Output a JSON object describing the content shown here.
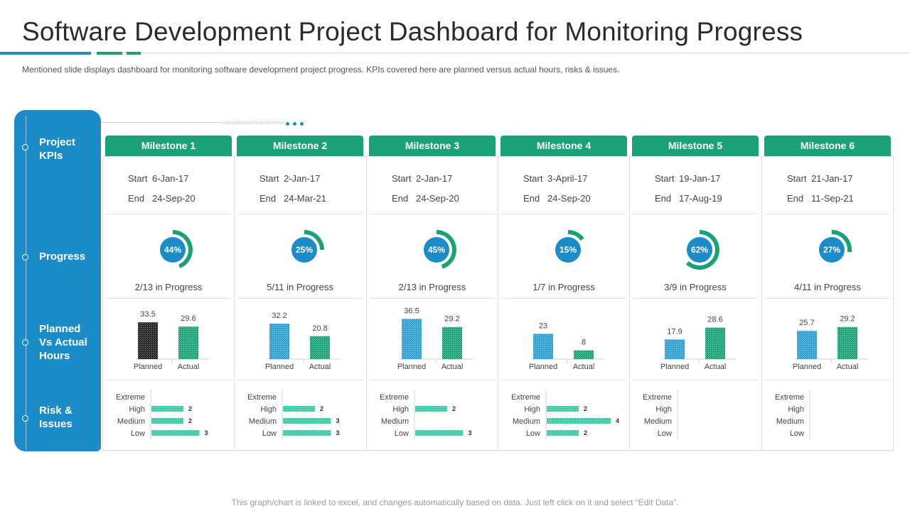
{
  "title": "Software Development Project Dashboard for Monitoring Progress",
  "subtitle": "Mentioned slide displays dashboard for monitoring software development  project progress. KPIs covered here are planned versus actual hours, risks & issues.",
  "footnote": "This graph/chart is linked to excel, and changes automatically based on data. Just left click on it and select “Edit Data”.",
  "colors": {
    "blue": "#1c8cc9",
    "green": "#1aa177",
    "bar_blue": "#2e9fd3",
    "bar_green": "#1aa177",
    "risk_bar": "#3cc8a4",
    "planned_dark": "#222222"
  },
  "sidebar": {
    "rows": [
      {
        "label": "Project KPIs"
      },
      {
        "label": "Progress"
      },
      {
        "label": "Planned Vs Actual Hours"
      },
      {
        "label": "Risk & Issues"
      }
    ]
  },
  "labels": {
    "start": "Start",
    "end": "End",
    "planned": "Planned",
    "actual": "Actual",
    "risk_levels": [
      "Extreme",
      "High",
      "Medium",
      "Low"
    ]
  },
  "milestones": [
    {
      "name": "Milestone  1",
      "start": "6-Jan-17",
      "end": "24-Sep-20",
      "progress_pct": 44,
      "progress_label": "44%",
      "progress_text": "2/13 in Progress",
      "planned": 33.5,
      "actual": 29.6,
      "planned_label": "33.5",
      "actual_label": "29.6",
      "planned_dark": true,
      "risks": [
        null,
        2,
        2,
        3
      ],
      "risk_labels": [
        "",
        "2",
        "2",
        "3"
      ]
    },
    {
      "name": "Milestone 2",
      "start": "2-Jan-17",
      "end": "24-Mar-21",
      "progress_pct": 25,
      "progress_label": "25%",
      "progress_text": "5/11 in Progress",
      "planned": 32.2,
      "actual": 20.8,
      "planned_label": "32.2",
      "actual_label": "20.8",
      "planned_dark": false,
      "risks": [
        null,
        2,
        3,
        3
      ],
      "risk_labels": [
        "",
        "2",
        "3",
        "3"
      ]
    },
    {
      "name": "Milestone 3",
      "start": "2-Jan-17",
      "end": "24-Sep-20",
      "progress_pct": 45,
      "progress_label": "45%",
      "progress_text": "2/13 in Progress",
      "planned": 36.5,
      "actual": 29.2,
      "planned_label": "36.5",
      "actual_label": "29.2",
      "planned_dark": false,
      "risks": [
        null,
        2,
        null,
        3
      ],
      "risk_labels": [
        "",
        "2",
        "",
        "3"
      ]
    },
    {
      "name": "Milestone 4",
      "start": "3-April-17",
      "end": "24-Sep-20",
      "progress_pct": 15,
      "progress_label": "15%",
      "progress_text": "1/7 in Progress",
      "planned": 23,
      "actual": 8,
      "planned_label": "23",
      "actual_label": "8",
      "planned_dark": false,
      "risks": [
        null,
        2,
        4,
        2
      ],
      "risk_labels": [
        "",
        "2",
        "4",
        "2"
      ]
    },
    {
      "name": "Milestone 5",
      "start": "19-Jan-17",
      "end": "17-Aug-19",
      "progress_pct": 62,
      "progress_label": "62%",
      "progress_text": "3/9 in Progress",
      "planned": 17.9,
      "actual": 28.6,
      "planned_label": "17.9",
      "actual_label": "28.6",
      "planned_dark": false,
      "risks": [
        null,
        null,
        null,
        null
      ],
      "risk_labels": [
        "",
        "",
        "",
        ""
      ]
    },
    {
      "name": "Milestone 6",
      "start": "21-Jan-17",
      "end": "11-Sep-21",
      "progress_pct": 27,
      "progress_label": "27%",
      "progress_text": "4/11 in Progress",
      "planned": 25.7,
      "actual": 29.2,
      "planned_label": "25.7",
      "actual_label": "29.2",
      "planned_dark": false,
      "risks": [
        null,
        null,
        null,
        null
      ],
      "risk_labels": [
        "",
        "",
        "",
        ""
      ]
    }
  ]
}
